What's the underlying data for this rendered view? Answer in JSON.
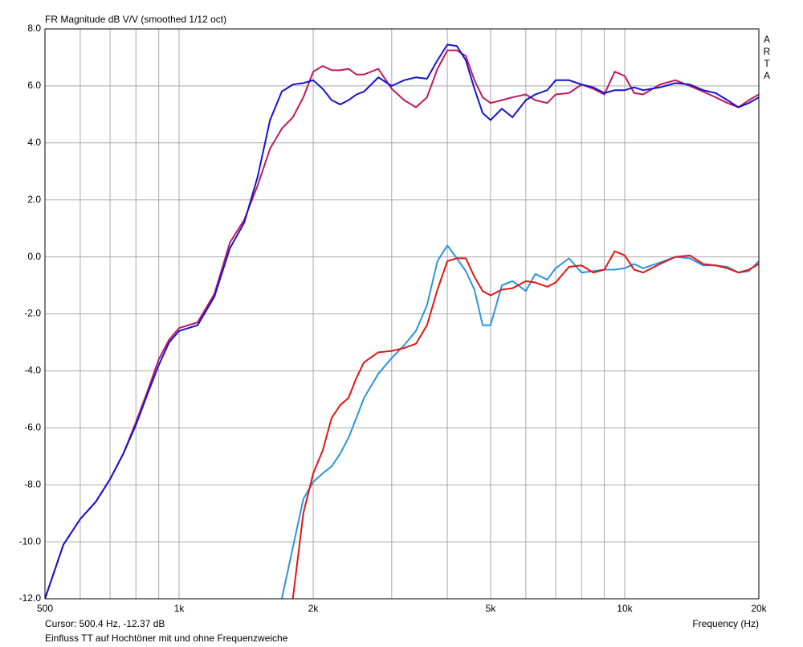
{
  "chart_data": {
    "type": "line",
    "title": "FR Magnitude dB V/V (smoothed 1/12 oct)",
    "watermark": "ARTA",
    "xlabel": "Frequency (Hz)",
    "cursor": "Cursor: 500.4 Hz, -12.37 dB",
    "caption": "Einfluss TT auf Hochtöner mit und ohne Frequenzweiche",
    "xscale": "log",
    "grid": true,
    "xlim": [
      500,
      20000
    ],
    "ylim": [
      -12,
      8
    ],
    "xticks": [
      {
        "value": 500,
        "label": "500"
      },
      {
        "value": 1000,
        "label": "1k"
      },
      {
        "value": 2000,
        "label": "2k"
      },
      {
        "value": 5000,
        "label": "5k"
      },
      {
        "value": 10000,
        "label": "10k"
      },
      {
        "value": 20000,
        "label": "20k"
      }
    ],
    "xminor": [
      600,
      700,
      800,
      900,
      3000,
      4000,
      6000,
      7000,
      8000,
      9000
    ],
    "yticks": [
      {
        "value": -12,
        "label": "-12.0"
      },
      {
        "value": -10,
        "label": "-10.0"
      },
      {
        "value": -8,
        "label": "-8.0"
      },
      {
        "value": -6,
        "label": "-6.0"
      },
      {
        "value": -4,
        "label": "-4.0"
      },
      {
        "value": -2,
        "label": "-2.0"
      },
      {
        "value": 0,
        "label": "0.0"
      },
      {
        "value": 2,
        "label": "2.0"
      },
      {
        "value": 4,
        "label": "4.0"
      },
      {
        "value": 6,
        "label": "6.0"
      },
      {
        "value": 8,
        "label": "8.0"
      }
    ],
    "x": [
      500,
      550,
      600,
      650,
      700,
      750,
      800,
      850,
      900,
      950,
      1000,
      1100,
      1200,
      1300,
      1400,
      1500,
      1600,
      1700,
      1800,
      1900,
      2000,
      2100,
      2200,
      2300,
      2400,
      2500,
      2600,
      2800,
      3000,
      3200,
      3400,
      3600,
      3800,
      4000,
      4200,
      4400,
      4600,
      4800,
      5000,
      5300,
      5600,
      6000,
      6300,
      6700,
      7000,
      7500,
      8000,
      8500,
      9000,
      9500,
      10000,
      10500,
      11000,
      12000,
      13000,
      14000,
      15000,
      16000,
      17000,
      18000,
      19000,
      20000
    ],
    "series": [
      {
        "color": "#c0185c",
        "values": [
          -12.0,
          -10.1,
          -9.2,
          -8.6,
          -7.8,
          -6.9,
          -5.8,
          -4.7,
          -3.6,
          -2.9,
          -2.5,
          -2.3,
          -1.3,
          0.5,
          1.3,
          2.5,
          3.8,
          4.5,
          4.9,
          5.6,
          6.5,
          6.7,
          6.55,
          6.55,
          6.6,
          6.4,
          6.4,
          6.6,
          5.9,
          5.5,
          5.25,
          5.6,
          6.6,
          7.25,
          7.25,
          7.05,
          6.2,
          5.6,
          5.4,
          5.5,
          5.6,
          5.7,
          5.5,
          5.4,
          5.7,
          5.75,
          6.05,
          5.9,
          5.7,
          6.5,
          6.35,
          5.75,
          5.7,
          6.05,
          6.2,
          6.0,
          5.8,
          5.6,
          5.4,
          5.25,
          5.5,
          5.7
        ]
      },
      {
        "color": "#1414d2",
        "values": [
          -12.0,
          -10.1,
          -9.2,
          -8.6,
          -7.8,
          -6.9,
          -5.9,
          -4.8,
          -3.8,
          -3.0,
          -2.6,
          -2.4,
          -1.4,
          0.3,
          1.2,
          2.8,
          4.8,
          5.8,
          6.05,
          6.1,
          6.2,
          5.9,
          5.5,
          5.35,
          5.5,
          5.7,
          5.8,
          6.3,
          6.0,
          6.2,
          6.3,
          6.25,
          6.9,
          7.45,
          7.4,
          6.9,
          5.9,
          5.05,
          4.8,
          5.2,
          4.9,
          5.5,
          5.7,
          5.85,
          6.2,
          6.2,
          6.05,
          5.95,
          5.75,
          5.85,
          5.85,
          5.95,
          5.85,
          5.95,
          6.1,
          6.05,
          5.85,
          5.75,
          5.5,
          5.25,
          5.4,
          5.6
        ]
      },
      {
        "color": "#2a94e2",
        "values": [
          null,
          null,
          null,
          null,
          null,
          null,
          null,
          null,
          null,
          null,
          null,
          null,
          null,
          null,
          null,
          null,
          null,
          -12.0,
          -10.2,
          -8.5,
          -7.9,
          -7.6,
          -7.35,
          -6.9,
          -6.35,
          -5.65,
          -4.95,
          -4.1,
          -3.55,
          -3.1,
          -2.6,
          -1.7,
          -0.15,
          0.4,
          -0.05,
          -0.5,
          -1.15,
          -2.4,
          -2.4,
          -1.0,
          -0.85,
          -1.2,
          -0.6,
          -0.8,
          -0.4,
          -0.05,
          -0.55,
          -0.5,
          -0.45,
          -0.45,
          -0.4,
          -0.25,
          -0.4,
          -0.2,
          0.0,
          -0.05,
          -0.3,
          -0.3,
          -0.35,
          -0.55,
          -0.5,
          -0.15
        ]
      },
      {
        "color": "#e41414",
        "values": [
          null,
          null,
          null,
          null,
          null,
          null,
          null,
          null,
          null,
          null,
          null,
          null,
          null,
          null,
          null,
          null,
          null,
          null,
          -12.0,
          -9.0,
          -7.6,
          -6.8,
          -5.65,
          -5.2,
          -4.95,
          -4.25,
          -3.7,
          -3.35,
          -3.3,
          -3.2,
          -3.05,
          -2.4,
          -1.15,
          -0.15,
          -0.05,
          -0.05,
          -0.7,
          -1.2,
          -1.35,
          -1.15,
          -1.1,
          -0.85,
          -0.9,
          -1.05,
          -0.9,
          -0.35,
          -0.3,
          -0.55,
          -0.45,
          0.2,
          0.05,
          -0.45,
          -0.55,
          -0.25,
          0.0,
          0.05,
          -0.25,
          -0.3,
          -0.4,
          -0.55,
          -0.45,
          -0.25
        ]
      }
    ]
  }
}
